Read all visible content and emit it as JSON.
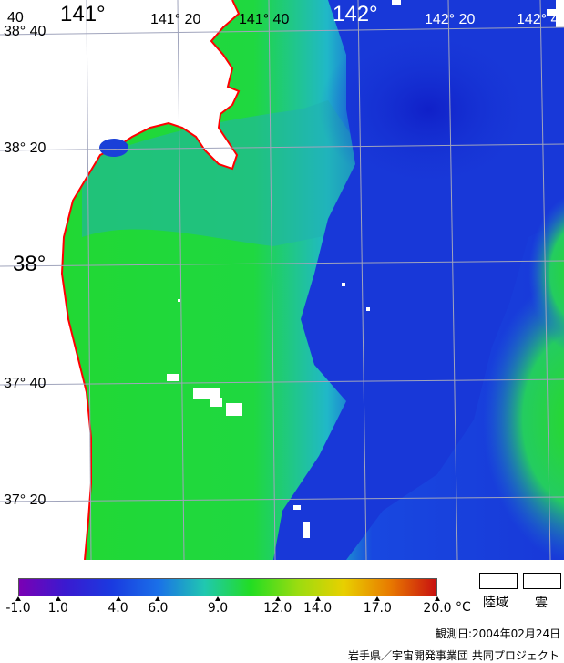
{
  "map": {
    "latitude_labels": [
      "38° 40",
      "38° 20",
      "38°",
      "37° 40",
      "37° 20"
    ],
    "longitude_labels": [
      "141°",
      "141° 20",
      "141° 40",
      "142°",
      "142° 20",
      "142° 4"
    ],
    "corner_label": "40"
  },
  "colors": {
    "land": "#ffffff",
    "coastline": "#ff0000",
    "grid": "#9aa0b4",
    "sea_warm": "#22dd22",
    "sea_mid": "#22c8a0",
    "sea_cold": "#1030d8"
  },
  "colorbar": {
    "ticks": [
      "-1.0",
      "1.0",
      "4.0",
      "6.0",
      "9.0",
      "12.0",
      "14.0",
      "17.0",
      "20.0"
    ],
    "tick_values": [
      -1.0,
      1.0,
      4.0,
      6.0,
      9.0,
      12.0,
      14.0,
      17.0,
      20.0
    ],
    "unit": "°C",
    "stops": [
      "#7a00b4",
      "#3a1ad0",
      "#1a3ae0",
      "#1a70e8",
      "#20c8b0",
      "#22dd22",
      "#9adc10",
      "#e8d000",
      "#e87a00",
      "#c81010"
    ],
    "min": -1.0,
    "max": 20.0
  },
  "legend": {
    "land_label": "陸域",
    "cloud_label": "雲"
  },
  "footer": {
    "observation_date": "観測日:2004年02月24日",
    "credit": "岩手県／宇宙開発事業団 共同プロジェクト"
  }
}
